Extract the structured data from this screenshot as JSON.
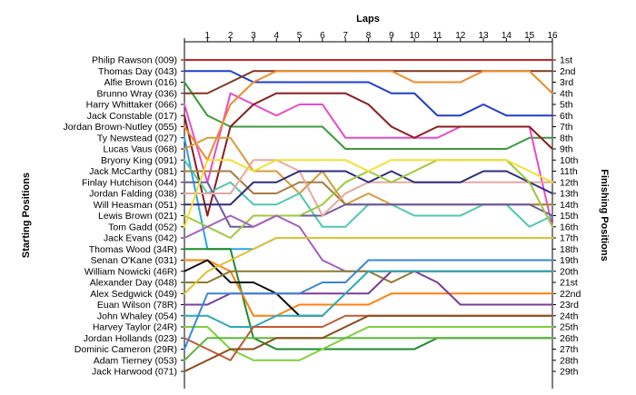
{
  "chart_data": {
    "type": "line",
    "x_title": "Laps",
    "left_title": "Starting Positions",
    "right_title": "Finishing Positions",
    "laps": [
      1,
      2,
      3,
      4,
      5,
      6,
      7,
      8,
      9,
      10,
      11,
      12,
      13,
      14,
      15,
      16
    ],
    "x_range": [
      0,
      16
    ],
    "y_range": [
      1,
      29
    ],
    "y_inverted": true,
    "grid": "none",
    "starting_order": [
      "Philip Rawson (009)",
      "Thomas Day (043)",
      "Alfie Brown (016)",
      "Brunno Wray (036)",
      "Harry Whittaker (066)",
      "Jack Constable (017)",
      "Jordan Brown-Nutley (055)",
      "Ty Newstead (027)",
      "Lucas Vaus (068)",
      "Bryony King (091)",
      "Jack McCarthy (081)",
      "Finlay Hutchison (044)",
      "Jordan Falding (038)",
      "Will Heasman (051)",
      "Lewis Brown (021)",
      "Tom Gadd (052)",
      "Jack Evans (042)",
      "Thomas Wood (34R)",
      "Senan O'Kane (031)",
      "William Nowicki (46R)",
      "Alexander Day (048)",
      "Alex Sedgwick (049)",
      "Euan Wilson (78R)",
      "John Whaley (054)",
      "Harvey Taylor (24R)",
      "Jordan Hollands (023)",
      "Dominic Cameron (29R)",
      "Adam Tierney (053)",
      "Jack Harwood (071)"
    ],
    "finishing_labels": [
      "1st",
      "2nd",
      "3rd",
      "4th",
      "5th",
      "6th",
      "7th",
      "8th",
      "9th",
      "10th",
      "11th",
      "12th",
      "13th",
      "14th",
      "15th",
      "16th",
      "17th",
      "18th",
      "19th",
      "20th",
      "21st",
      "22nd",
      "23rd",
      "24th",
      "25th",
      "26th",
      "27th",
      "28th",
      "29th"
    ],
    "series": [
      {
        "name": "Philip Rawson (009)",
        "color": "#c0272d",
        "positions": [
          1,
          1,
          1,
          1,
          1,
          1,
          1,
          1,
          1,
          1,
          1,
          1,
          1,
          1,
          1,
          1,
          1
        ]
      },
      {
        "name": "Thomas Day (043)",
        "color": "#1f3ec9",
        "positions": [
          2,
          2,
          2,
          3,
          3,
          3,
          3,
          3,
          3,
          4,
          4,
          6,
          6,
          5,
          6,
          6,
          6
        ]
      },
      {
        "name": "Alfie Brown (016)",
        "color": "#3c9a3c",
        "positions": [
          3,
          6,
          7,
          7,
          7,
          7,
          7,
          9,
          9,
          9,
          9,
          9,
          9,
          9,
          9,
          8,
          8
        ]
      },
      {
        "name": "Brunno Wray (036)",
        "color": "#7b3a1e",
        "positions": [
          4,
          4,
          3,
          2,
          2,
          2,
          2,
          2,
          2,
          2,
          2,
          2,
          2,
          2,
          2,
          2,
          2
        ]
      },
      {
        "name": "Harry Whittaker (066)",
        "color": "#e54ccb",
        "positions": [
          5,
          12,
          4,
          5,
          6,
          5,
          5,
          8,
          8,
          8,
          8,
          8,
          7,
          7,
          7,
          7,
          16
        ]
      },
      {
        "name": "Jack Constable (017)",
        "color": "#8b1d1d",
        "positions": [
          6,
          15,
          7,
          5,
          4,
          4,
          4,
          4,
          5,
          7,
          8,
          7,
          7,
          7,
          7,
          7,
          9
        ]
      },
      {
        "name": "Jordan Brown-Nutley (055)",
        "color": "#f08a2a",
        "positions": [
          7,
          10,
          5,
          3,
          2,
          2,
          2,
          2,
          2,
          2,
          3,
          3,
          3,
          2,
          2,
          2,
          4
        ]
      },
      {
        "name": "Ty Newstead (027)",
        "color": "#26a6e6",
        "positions": [
          8,
          18,
          18,
          18,
          17,
          17,
          17,
          17,
          17,
          17,
          17,
          17,
          17,
          17,
          17,
          17,
          17
        ]
      },
      {
        "name": "Lucas Vaus (068)",
        "color": "#d69b3c",
        "positions": [
          9,
          8,
          8,
          11,
          11,
          13,
          11,
          14,
          13,
          14,
          14,
          14,
          14,
          14,
          14,
          14,
          14
        ]
      },
      {
        "name": "Bryony King (091)",
        "color": "#50c8b0",
        "positions": [
          10,
          13,
          12,
          14,
          14,
          13,
          16,
          16,
          14,
          14,
          15,
          15,
          15,
          14,
          14,
          16,
          15
        ]
      },
      {
        "name": "Jack McCarthy (081)",
        "color": "#a37e45",
        "positions": [
          11,
          11,
          11,
          13,
          13,
          12,
          12,
          14,
          14,
          14,
          14,
          14,
          14,
          14,
          14,
          14,
          14
        ]
      },
      {
        "name": "Finlay Hutchison (044)",
        "color": "#6e5a9f",
        "positions": [
          12,
          12,
          16,
          16,
          15,
          15,
          15,
          14,
          14,
          14,
          14,
          14,
          14,
          14,
          14,
          14,
          15
        ]
      },
      {
        "name": "Jordan Falding (038)",
        "color": "#e7a8a0",
        "positions": [
          13,
          13,
          13,
          10,
          10,
          11,
          15,
          13,
          12,
          12,
          12,
          12,
          12,
          12,
          12,
          12,
          12
        ]
      },
      {
        "name": "Will Heasman (051)",
        "color": "#2e2e7a",
        "positions": [
          14,
          14,
          14,
          12,
          12,
          11,
          11,
          11,
          12,
          11,
          12,
          12,
          12,
          11,
          11,
          12,
          13
        ]
      },
      {
        "name": "Lewis Brown (021)",
        "color": "#9ec83e",
        "positions": [
          15,
          16,
          17,
          15,
          15,
          15,
          14,
          12,
          11,
          12,
          11,
          10,
          10,
          10,
          10,
          12,
          16
        ]
      },
      {
        "name": "Tom Gadd (052)",
        "color": "#f3e02e",
        "positions": [
          16,
          10,
          10,
          11,
          10,
          10,
          10,
          10,
          11,
          10,
          10,
          10,
          10,
          10,
          10,
          11,
          12
        ]
      },
      {
        "name": "Jack Evans (042)",
        "color": "#a35fc2",
        "positions": [
          17,
          16,
          15,
          16,
          15,
          16,
          19,
          20,
          20,
          20,
          20,
          20,
          20,
          20,
          20,
          20,
          20
        ]
      },
      {
        "name": "Thomas Wood (34R)",
        "color": "#1f8a2b",
        "positions": [
          18,
          18,
          18,
          26,
          27,
          27,
          27,
          27,
          27,
          27,
          27,
          26,
          26,
          26,
          26,
          26,
          26
        ]
      },
      {
        "name": "Senan O'Kane (031)",
        "color": "#ff7f0e",
        "positions": [
          19,
          19,
          20,
          24,
          24,
          23,
          23,
          23,
          23,
          22,
          22,
          22,
          22,
          22,
          22,
          22,
          22
        ]
      },
      {
        "name": "William Nowicki (46R)",
        "color": "#111111",
        "positions": [
          20,
          19,
          21,
          21,
          22,
          24,
          24
        ]
      },
      {
        "name": "Alexander Day (048)",
        "color": "#8c7a2f",
        "positions": [
          21,
          21,
          20,
          20,
          20,
          20,
          20,
          20,
          20,
          21,
          20,
          20,
          20,
          20,
          20,
          20,
          20
        ]
      },
      {
        "name": "Alex Sedgwick (049)",
        "color": "#e0c030",
        "positions": [
          22,
          20,
          19,
          18,
          17,
          17,
          17,
          17,
          17,
          17,
          17,
          17,
          17,
          17,
          17,
          17,
          17
        ]
      },
      {
        "name": "Euan Wilson (78R)",
        "color": "#7d3c98",
        "positions": [
          23,
          23,
          22,
          22,
          22,
          22,
          22,
          22,
          22,
          20,
          20,
          21,
          23,
          23,
          23,
          23,
          23
        ]
      },
      {
        "name": "John Whaley (054)",
        "color": "#2aa8b8",
        "positions": [
          24,
          24,
          25,
          25,
          24,
          24,
          24,
          22,
          20,
          20,
          20,
          20,
          20,
          20,
          20,
          20,
          20
        ]
      },
      {
        "name": "Harvey Taylor (24R)",
        "color": "#7ad23a",
        "positions": [
          25,
          25,
          27,
          28,
          28,
          28,
          27,
          26,
          25,
          25,
          25,
          25,
          25,
          25,
          25,
          25,
          25
        ]
      },
      {
        "name": "Jordan Hollands (023)",
        "color": "#c05a34",
        "positions": [
          26,
          27,
          28,
          25,
          25,
          25,
          25,
          24,
          24,
          24,
          24,
          24,
          24,
          24,
          24,
          24,
          24
        ]
      },
      {
        "name": "Dominic Cameron (29R)",
        "color": "#3a86d1",
        "positions": [
          27,
          22,
          22,
          22,
          22,
          22,
          21,
          21,
          19,
          19,
          19,
          19,
          19,
          19,
          19,
          19,
          19
        ]
      },
      {
        "name": "Adam Tierney (053)",
        "color": "#5cb83a",
        "positions": [
          28,
          26,
          26,
          26,
          26,
          26,
          26,
          26,
          26,
          26,
          26,
          26,
          26,
          26,
          26,
          26,
          26
        ]
      },
      {
        "name": "Jack Harwood (071)",
        "color": "#8b4a1a",
        "positions": [
          29,
          28,
          27,
          27,
          26,
          26,
          26,
          25,
          24,
          24,
          24,
          24,
          24,
          24,
          24,
          24,
          24
        ]
      }
    ]
  }
}
